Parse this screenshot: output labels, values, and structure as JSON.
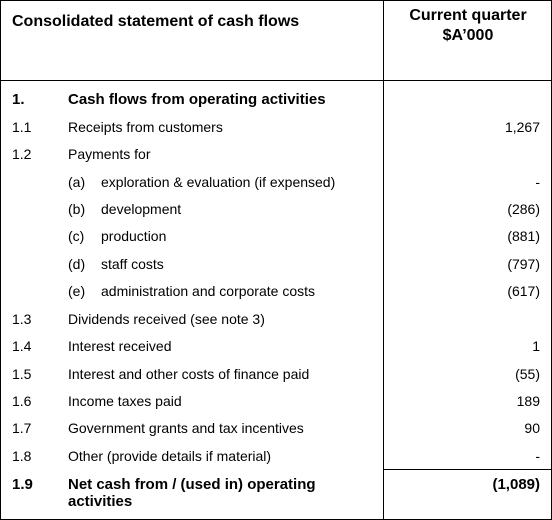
{
  "header": {
    "title": "Consolidated statement of cash flows",
    "column_heading": [
      "Current quarter",
      "$A’000"
    ]
  },
  "rows": [
    {
      "num": "1.",
      "label": "Cash flows from operating activities",
      "bold": true
    },
    {
      "num": "1.1",
      "label": "Receipts from customers",
      "value": "1,267"
    },
    {
      "num": "1.2",
      "label": "Payments for"
    },
    {
      "item": "(a)",
      "label": "exploration & evaluation (if expensed)",
      "value": "-"
    },
    {
      "item": "(b)",
      "label": "development",
      "value": "(286)"
    },
    {
      "item": "(c)",
      "label": "production",
      "value": "(881)"
    },
    {
      "item": "(d)",
      "label": "staff costs",
      "value": "(797)"
    },
    {
      "item": "(e)",
      "label": "administration and corporate costs",
      "value": "(617)"
    },
    {
      "num": "1.3",
      "label": "Dividends received (see note 3)"
    },
    {
      "num": "1.4",
      "label": "Interest received",
      "value": "1"
    },
    {
      "num": "1.5",
      "label": "Interest and other costs of finance paid",
      "value": "(55)"
    },
    {
      "num": "1.6",
      "label": "Income taxes paid",
      "value": "189"
    },
    {
      "num": "1.7",
      "label": "Government grants and tax incentives",
      "value": "90"
    },
    {
      "num": "1.8",
      "label": "Other (provide details if material)",
      "value": "-"
    },
    {
      "num": "1.9",
      "label": "Net cash from / (used in) operating activities",
      "value": "(1,089)",
      "bold": true
    }
  ]
}
